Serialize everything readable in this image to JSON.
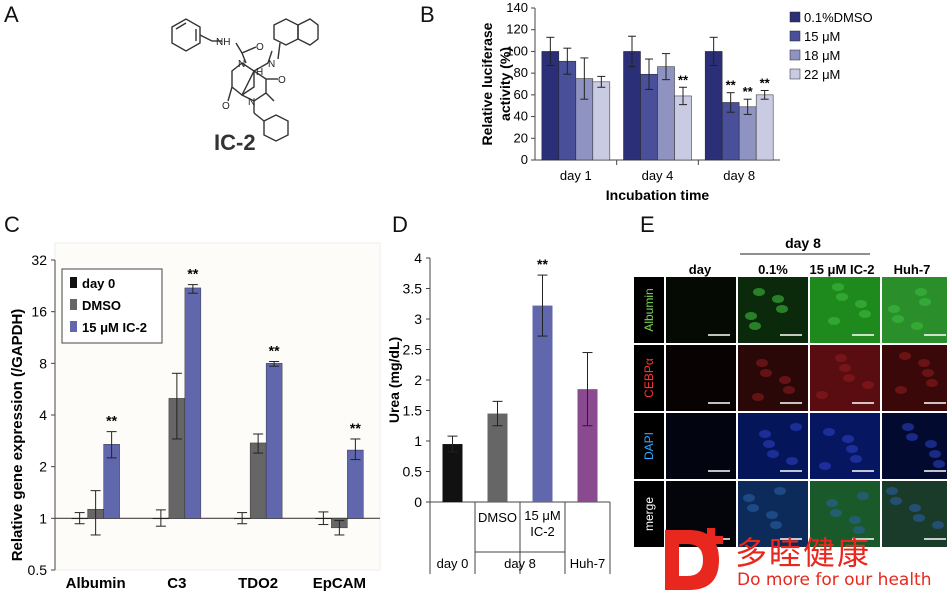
{
  "panels": {
    "A": "A",
    "B": "B",
    "C": "C",
    "D": "D",
    "E": "E"
  },
  "compound_label": "IC-2",
  "molecule_labels": {
    "nh": "NH",
    "o": "O",
    "n": "N",
    "h": "H"
  },
  "chart_data": [
    {
      "id": "B",
      "type": "bar",
      "xlabel": "Incubation time",
      "ylabel": "Relative luciferase activity (%)",
      "ylim": [
        0,
        140
      ],
      "yticks": [
        0,
        20,
        40,
        60,
        80,
        100,
        120,
        140
      ],
      "categories": [
        "day 1",
        "day 4",
        "day 8"
      ],
      "legend_position": "top-right",
      "series": [
        {
          "name": "0.1%DMSO",
          "color": "#2b2f77",
          "values": [
            100,
            100,
            100
          ],
          "err": [
            13,
            14,
            13
          ],
          "sig": [
            "",
            "",
            ""
          ]
        },
        {
          "name": "15 μM",
          "color": "#4a4f9a",
          "values": [
            91,
            79,
            53
          ],
          "err": [
            12,
            14,
            9
          ],
          "sig": [
            "",
            "",
            "**"
          ]
        },
        {
          "name": "18 μM",
          "color": "#8f93c2",
          "values": [
            75,
            86,
            49
          ],
          "err": [
            19,
            12,
            7
          ],
          "sig": [
            "",
            "",
            "**"
          ]
        },
        {
          "name": "22 μM",
          "color": "#c9cbe2",
          "values": [
            72,
            59,
            60
          ],
          "err": [
            5,
            8,
            4
          ],
          "sig": [
            "",
            "**",
            "**"
          ]
        }
      ]
    },
    {
      "id": "C",
      "type": "bar",
      "ylabel": "Relative gene expression (/GAPDH)",
      "yscale": "log2",
      "ylim": [
        0.5,
        32
      ],
      "yticks": [
        0.5,
        1,
        2,
        4,
        8,
        16,
        32
      ],
      "ytick_labels": [
        "0.5",
        "1",
        "2",
        "4",
        "8",
        "16",
        "32"
      ],
      "categories": [
        "Albumin",
        "C3",
        "TDO2",
        "EpCAM"
      ],
      "legend_position": "top-left",
      "series": [
        {
          "name": "day 0",
          "color": "#111111",
          "values": [
            1,
            1,
            1,
            1
          ],
          "err_lo": [
            0.93,
            0.9,
            0.93,
            0.92
          ],
          "err_hi": [
            1.08,
            1.12,
            1.08,
            1.09
          ],
          "sig": [
            "",
            "",
            "",
            ""
          ]
        },
        {
          "name": "DMSO",
          "color": "#666666",
          "values": [
            1.13,
            5.0,
            2.75,
            0.88
          ],
          "err_lo": [
            0.8,
            2.9,
            2.4,
            0.8
          ],
          "err_hi": [
            1.45,
            7.0,
            3.1,
            0.97
          ],
          "sig": [
            "",
            "",
            "",
            ""
          ]
        },
        {
          "name": "15 μM IC-2",
          "color": "#6167ad",
          "values": [
            2.7,
            22.0,
            8.0,
            2.5
          ],
          "err_lo": [
            2.25,
            20.5,
            7.7,
            2.2
          ],
          "err_hi": [
            3.2,
            23.0,
            8.2,
            2.9
          ],
          "sig": [
            "**",
            "**",
            "**",
            "**"
          ]
        }
      ]
    },
    {
      "id": "D",
      "type": "bar",
      "ylabel": "Urea (mg/dL)",
      "ylim": [
        0,
        4
      ],
      "yticks": [
        0,
        0.5,
        1,
        1.5,
        2,
        2.5,
        3,
        3.5,
        4
      ],
      "ytick_labels": [
        "0",
        "0.5",
        "1",
        "1.5",
        "2",
        "2.5",
        "3",
        "3.5",
        "4"
      ],
      "categories": [
        "day 0",
        "DMSO",
        "15 μM IC-2",
        "Huh-7"
      ],
      "colors": [
        "#111111",
        "#666666",
        "#6167ad",
        "#8a4a8f"
      ],
      "values": [
        0.95,
        1.45,
        3.22,
        1.85
      ],
      "err": [
        0.13,
        0.2,
        0.5,
        0.6
      ],
      "sig": [
        "",
        "",
        "**",
        ""
      ],
      "group_labels": {
        "day0": "day 0",
        "day8": "day 8",
        "huh7": "Huh-7"
      },
      "sub_labels": {
        "dmso": "DMSO",
        "ic2_line1": "15 μM",
        "ic2_line2": "IC-2"
      }
    }
  ],
  "panel_e": {
    "title": "day 8",
    "col_labels": [
      "day",
      "0.1%",
      "15 μM IC-2",
      "Huh-7"
    ],
    "row_labels": [
      {
        "text": "Albumin",
        "color": "#7ed957"
      },
      {
        "text": "CEBPα",
        "color": "#ff3333"
      },
      {
        "text": "DAPI",
        "color": "#33aaff"
      },
      {
        "text": "merge",
        "color": "#ffffff"
      }
    ]
  },
  "watermark": {
    "brand": "多睦健康",
    "slogan": "Do more for our health",
    "logo_color": "#e8281e"
  }
}
